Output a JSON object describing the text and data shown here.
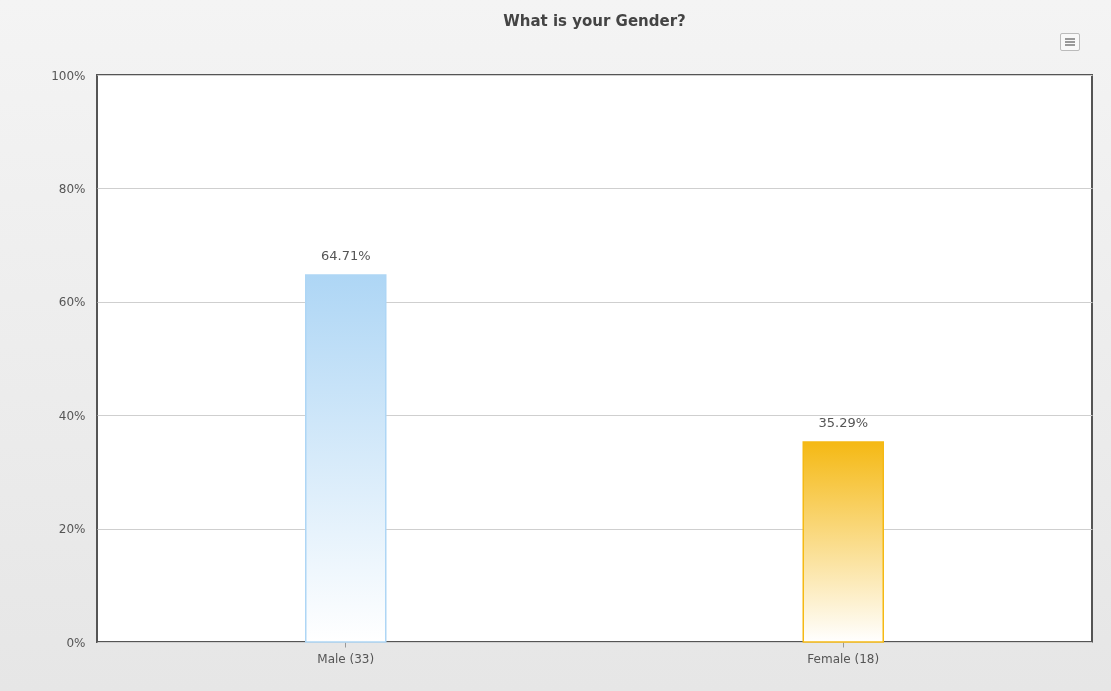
{
  "chart_data": {
    "type": "bar",
    "title": "What is your Gender?",
    "categories": [
      "Male (33)",
      "Female (18)"
    ],
    "values": [
      64.71,
      35.29
    ],
    "colors": [
      "#aed6f5",
      "#f5b914"
    ],
    "value_labels": [
      "64.71%",
      "35.29%"
    ],
    "ylim": [
      0,
      100
    ],
    "yticks": [
      {
        "value": 0,
        "label": "0%"
      },
      {
        "value": 20,
        "label": "20%"
      },
      {
        "value": 40,
        "label": "40%"
      },
      {
        "value": 60,
        "label": "60%"
      },
      {
        "value": 80,
        "label": "80%"
      },
      {
        "value": 100,
        "label": "100%"
      }
    ],
    "grid": "y"
  }
}
